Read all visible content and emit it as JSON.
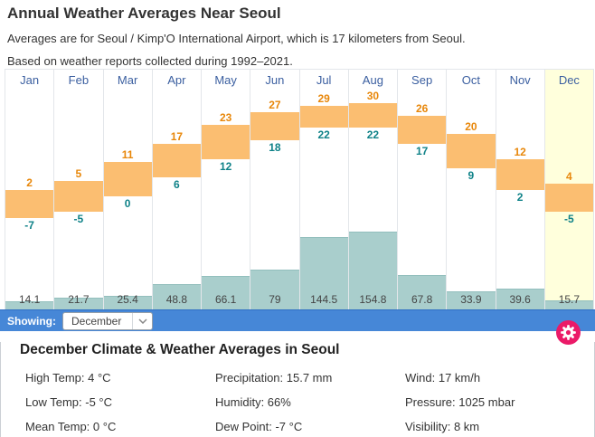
{
  "header": {
    "title": "Annual Weather Averages Near Seoul",
    "subtitle_location": "Averages are for Seoul / Kimp'O International Airport, which is 17 kilometers from Seoul.",
    "subtitle_period": "Based on weather reports collected during 1992–2021."
  },
  "chart_data": {
    "type": "bar",
    "categories": [
      "Jan",
      "Feb",
      "Mar",
      "Apr",
      "May",
      "Jun",
      "Jul",
      "Aug",
      "Sep",
      "Oct",
      "Nov",
      "Dec"
    ],
    "series": [
      {
        "name": "High Temp (°C)",
        "values": [
          2,
          5,
          11,
          17,
          23,
          27,
          29,
          30,
          26,
          20,
          12,
          4
        ]
      },
      {
        "name": "Low Temp (°C)",
        "values": [
          -7,
          -5,
          0,
          6,
          12,
          18,
          22,
          22,
          17,
          9,
          2,
          -5
        ]
      },
      {
        "name": "Precipitation (mm)",
        "values": [
          14.1,
          21.7,
          25.4,
          48.8,
          66.1,
          79,
          144.5,
          154.8,
          67.8,
          33.9,
          39.6,
          15.7
        ]
      }
    ],
    "highlighted_category": "Dec",
    "temp_axis_range": [
      -12,
      36
    ],
    "legend": "none",
    "grid": "column-borders-only",
    "colors": {
      "temp_bar": "#FBBE71",
      "high_label": "#E8870A",
      "low_label": "#0F8288",
      "precip_bar": "#A9CECC",
      "precip_label": "#444444",
      "month_label": "#3B5FA0",
      "highlight_column": "#FFFFDC"
    }
  },
  "showing_bar": {
    "label": "Showing:",
    "selected_month": "December",
    "bar_color": "#4687D7"
  },
  "settings": {
    "icon": "gear-icon",
    "color": "#EB1A68"
  },
  "details": {
    "heading": "December Climate & Weather Averages in Seoul",
    "rows": [
      [
        "High Temp: 4 °C",
        "Precipitation: 15.7 mm",
        "Wind: 17 km/h"
      ],
      [
        "Low Temp: -5 °C",
        "Humidity: 66%",
        "Pressure: 1025 mbar"
      ],
      [
        "Mean Temp: 0 °C",
        "Dew Point: -7 °C",
        "Visibility: 8 km"
      ]
    ]
  }
}
